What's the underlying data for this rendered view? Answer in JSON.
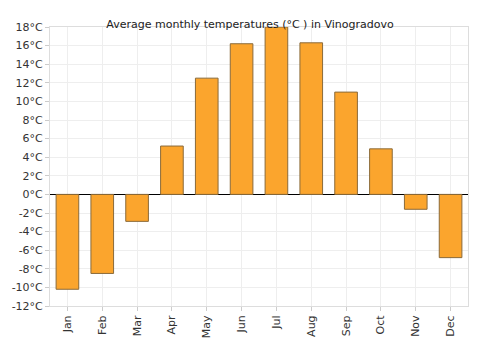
{
  "chart_data": {
    "type": "bar",
    "title": "Average monthly temperatures (°C ) in Vinogradovo",
    "categories": [
      "Jan",
      "Feb",
      "Mar",
      "Apr",
      "May",
      "Jun",
      "Jul",
      "Aug",
      "Sep",
      "Oct",
      "Nov",
      "Dec"
    ],
    "values": [
      -10.2,
      -8.5,
      -2.9,
      5.2,
      12.5,
      16.2,
      18.0,
      16.3,
      11.0,
      4.9,
      -1.6,
      -6.8
    ],
    "color": "#fba52d",
    "ylim": [
      -12,
      18
    ],
    "yticks": [
      {
        "value": -12,
        "label": "-12°C"
      },
      {
        "value": -10,
        "label": "-10°C"
      },
      {
        "value": -8,
        "label": "-8°C"
      },
      {
        "value": -6,
        "label": "-6°C"
      },
      {
        "value": -4,
        "label": "-4°C"
      },
      {
        "value": -2,
        "label": "-2°C"
      },
      {
        "value": 0,
        "label": "0°C"
      },
      {
        "value": 2,
        "label": "2°C"
      },
      {
        "value": 4,
        "label": "4°C"
      },
      {
        "value": 6,
        "label": "6°C"
      },
      {
        "value": 8,
        "label": "8°C"
      },
      {
        "value": 10,
        "label": "10°C"
      },
      {
        "value": 12,
        "label": "12°C"
      },
      {
        "value": 14,
        "label": "14°C"
      },
      {
        "value": 16,
        "label": "16°C"
      },
      {
        "value": 18,
        "label": "18°C"
      }
    ],
    "grid": true
  }
}
